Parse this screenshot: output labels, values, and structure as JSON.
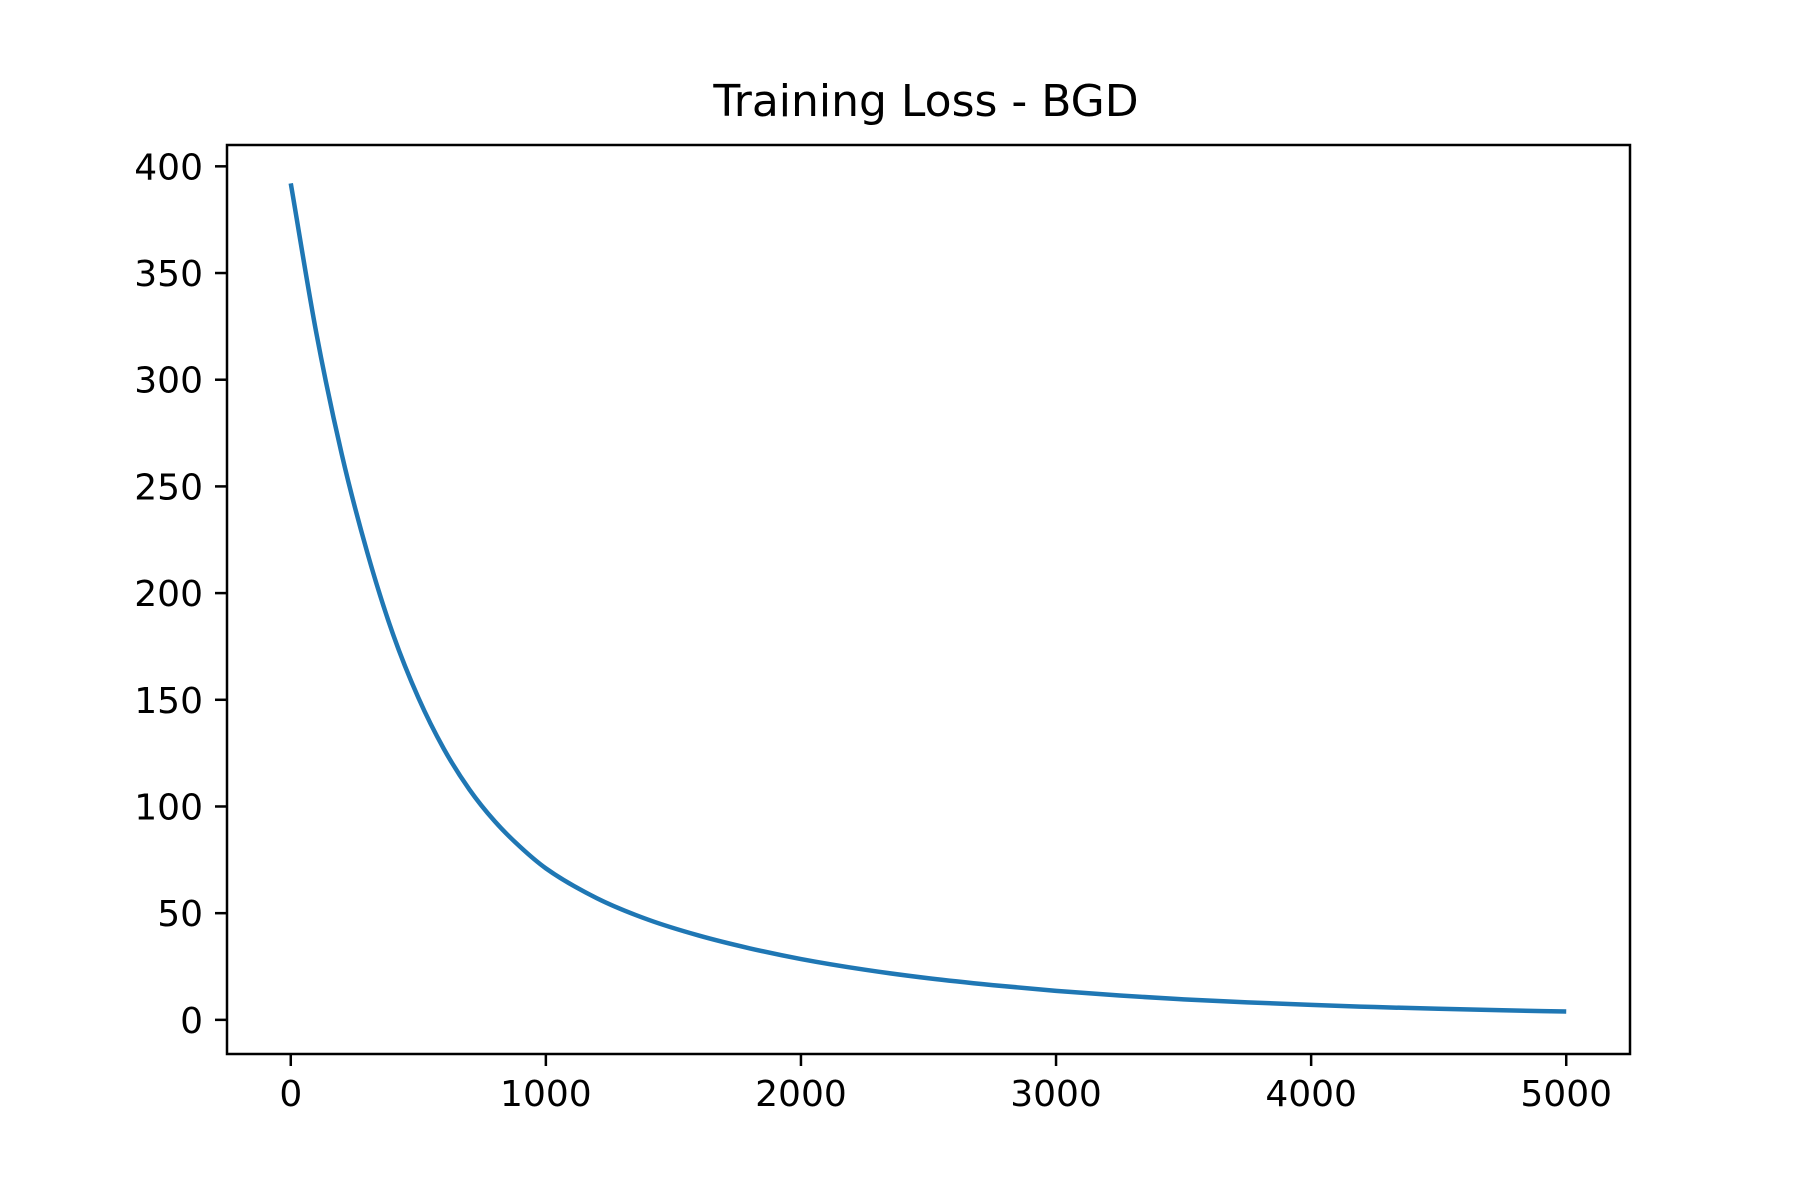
{
  "chart_data": {
    "type": "line",
    "title": "Training Loss - BGD",
    "xlabel": "",
    "ylabel": "",
    "xlim": [
      -250,
      5250
    ],
    "ylim": [
      -16,
      410
    ],
    "xticks": [
      0,
      1000,
      2000,
      3000,
      4000,
      5000
    ],
    "yticks": [
      0,
      50,
      100,
      150,
      200,
      250,
      300,
      350,
      400
    ],
    "grid": false,
    "legend": "none",
    "series": [
      {
        "color": "#1f77b4",
        "x": [
          0,
          100,
          200,
          300,
          400,
          500,
          600,
          700,
          800,
          900,
          1000,
          1200,
          1400,
          1600,
          1800,
          2000,
          2250,
          2500,
          2750,
          3000,
          3250,
          3500,
          3750,
          4000,
          4250,
          4500,
          4750,
          5000
        ],
        "y": [
          392,
          322,
          265,
          219,
          181,
          151,
          127,
          108,
          93,
          81,
          71,
          57,
          47,
          39.5,
          33.5,
          28.5,
          23.5,
          19.5,
          16.3,
          13.6,
          11.4,
          9.6,
          8.2,
          7.0,
          6.0,
          5.2,
          4.5,
          3.9
        ]
      }
    ]
  }
}
